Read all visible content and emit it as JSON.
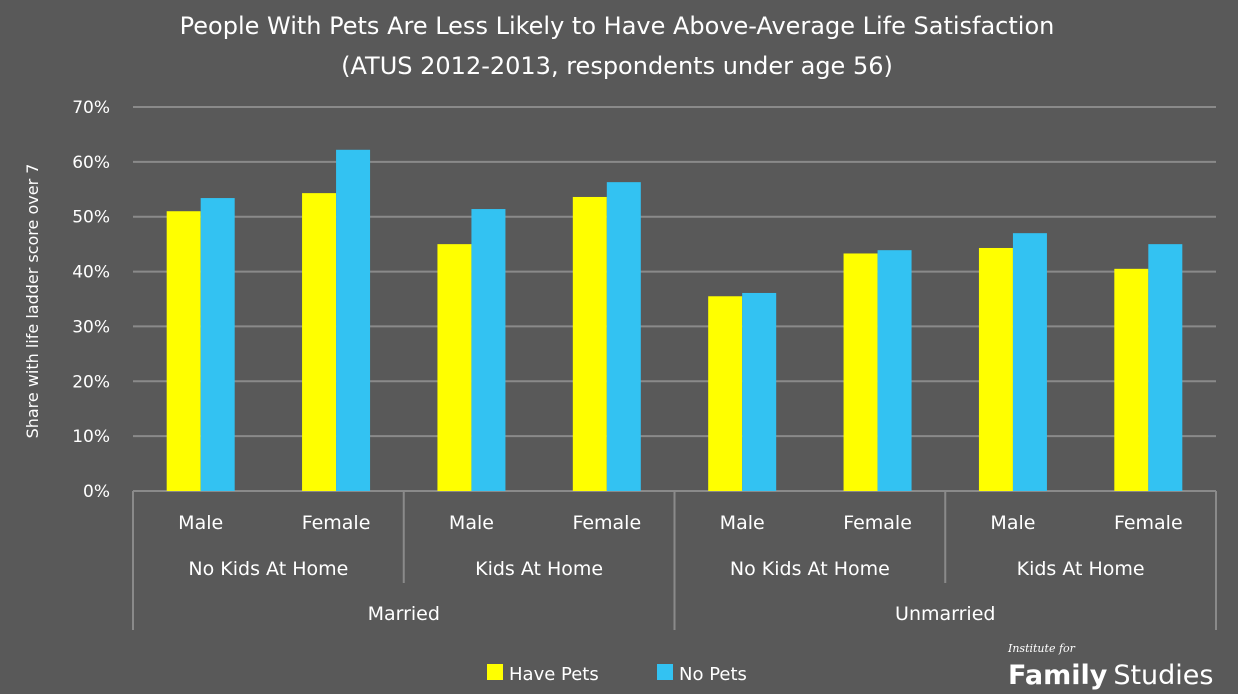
{
  "chart_data": {
    "type": "bar",
    "title": "People With Pets Are Less Likely to Have Above-Average Life Satisfaction",
    "subtitle": "(ATUS 2012-2013, respondents under age 56)",
    "ylabel": "Share with life ladder score over 7",
    "ylim": [
      0,
      70
    ],
    "yticks": [
      "0%",
      "10%",
      "20%",
      "30%",
      "40%",
      "50%",
      "60%",
      "70%"
    ],
    "grid": true,
    "legend_position": "bottom",
    "categories": [
      "Male",
      "Female",
      "Male",
      "Female",
      "Male",
      "Female",
      "Male",
      "Female"
    ],
    "category_groups_level2": [
      {
        "label": "No Kids At Home",
        "span": 2
      },
      {
        "label": "Kids At Home",
        "span": 2
      },
      {
        "label": "No Kids At Home",
        "span": 2
      },
      {
        "label": "Kids At Home",
        "span": 2
      }
    ],
    "category_groups_level1": [
      {
        "label": "Married",
        "span": 4
      },
      {
        "label": "Unmarried",
        "span": 4
      }
    ],
    "series": [
      {
        "name": "Have Pets",
        "color": "#ffff00",
        "values": [
          51,
          54.3,
          45,
          53.6,
          35.5,
          43.3,
          44.3,
          40.5
        ]
      },
      {
        "name": "No Pets",
        "color": "#33c2f2",
        "values": [
          53.4,
          62.2,
          51.4,
          56.3,
          36.1,
          43.9,
          47,
          45
        ]
      }
    ]
  },
  "logo": {
    "line1": "Institute for",
    "line2_bold": "Family",
    "line2": "Studies"
  }
}
